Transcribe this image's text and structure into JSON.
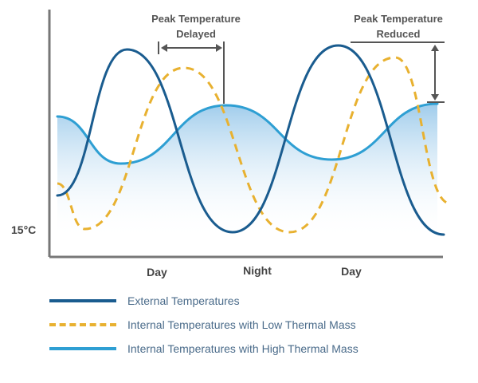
{
  "chart_data": {
    "type": "line",
    "title": "",
    "xlabel": "",
    "ylabel": "",
    "x_ticks": [
      "Day",
      "Night",
      "Day"
    ],
    "y_ticks": [
      "15°C"
    ],
    "annotations": [
      "Peak Temperature Delayed",
      "Peak Temperature Reduced"
    ],
    "annotation_lines": {
      "delayed": [
        "Peak Temperature",
        "Delayed"
      ],
      "reduced": [
        "Peak Temperature",
        "Reduced"
      ]
    },
    "grid": false,
    "legend_position": "bottom",
    "series": [
      {
        "name": "External Temperatures",
        "color": "#1a5c8f",
        "style": "solid",
        "points": [
          [
            0,
            245
          ],
          [
            0.33,
            62
          ],
          [
            0.83,
            291
          ],
          [
            1.33,
            57
          ],
          [
            1.83,
            294
          ]
        ]
      },
      {
        "name": "Internal Temperatures with Low Thermal Mass",
        "color": "#e8b130",
        "style": "dashed",
        "points": [
          [
            0,
            230
          ],
          [
            0.13,
            287
          ],
          [
            0.6,
            85
          ],
          [
            1.1,
            291
          ],
          [
            1.6,
            72
          ],
          [
            1.86,
            255
          ]
        ]
      },
      {
        "name": "Internal Temperatures with High Thermal Mass",
        "color": "#2e9fd3",
        "style": "solid",
        "shaded": true,
        "points": [
          [
            0,
            146
          ],
          [
            0.3,
            205
          ],
          [
            0.8,
            132
          ],
          [
            1.3,
            200
          ],
          [
            1.8,
            130
          ]
        ]
      }
    ]
  }
}
